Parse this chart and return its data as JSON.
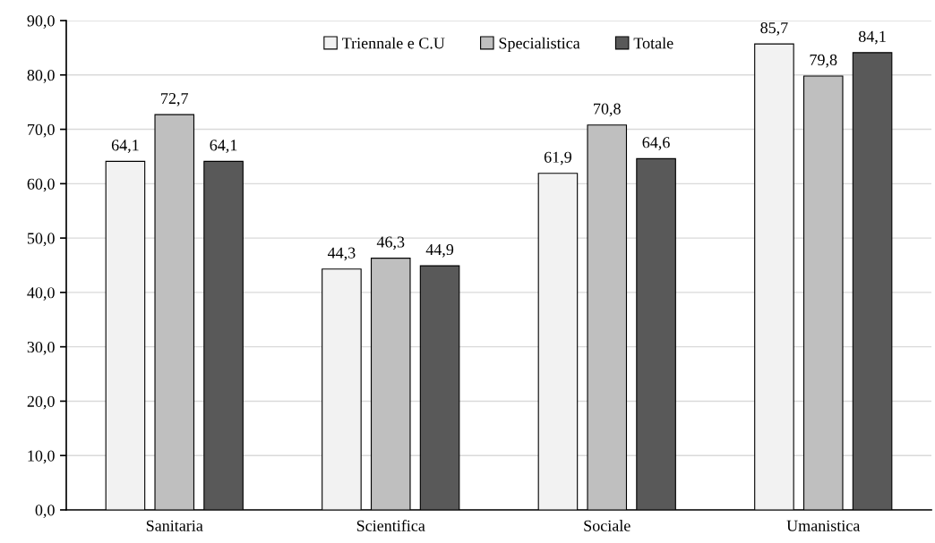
{
  "chart_data": {
    "type": "bar",
    "categories": [
      "Sanitaria",
      "Scientifica",
      "Sociale",
      "Umanistica"
    ],
    "series": [
      {
        "name": "Triennale e C.U",
        "color": "#f2f2f2",
        "values": [
          64.1,
          44.3,
          61.9,
          85.7
        ],
        "value_labels": [
          "64,1",
          "44,3",
          "61,9",
          "85,7"
        ]
      },
      {
        "name": "Specialistica",
        "color": "#bfbfbf",
        "values": [
          72.7,
          46.3,
          70.8,
          79.8
        ],
        "value_labels": [
          "72,7",
          "46,3",
          "70,8",
          "79,8"
        ]
      },
      {
        "name": "Totale",
        "color": "#595959",
        "values": [
          64.1,
          44.9,
          64.6,
          84.1
        ],
        "value_labels": [
          "64,1",
          "44,9",
          "64,6",
          "84,1"
        ]
      }
    ],
    "ylim": [
      0,
      90
    ],
    "yticks": [
      {
        "value": 0,
        "label": "0,0"
      },
      {
        "value": 10,
        "label": "10,0"
      },
      {
        "value": 20,
        "label": "20,0"
      },
      {
        "value": 30,
        "label": "30,0"
      },
      {
        "value": 40,
        "label": "40,0"
      },
      {
        "value": 50,
        "label": "50,0"
      },
      {
        "value": 60,
        "label": "60,0"
      },
      {
        "value": 70,
        "label": "70,0"
      },
      {
        "value": 80,
        "label": "80,0"
      },
      {
        "value": 90,
        "label": "90,0"
      }
    ],
    "grid": "y",
    "legend": "top"
  }
}
